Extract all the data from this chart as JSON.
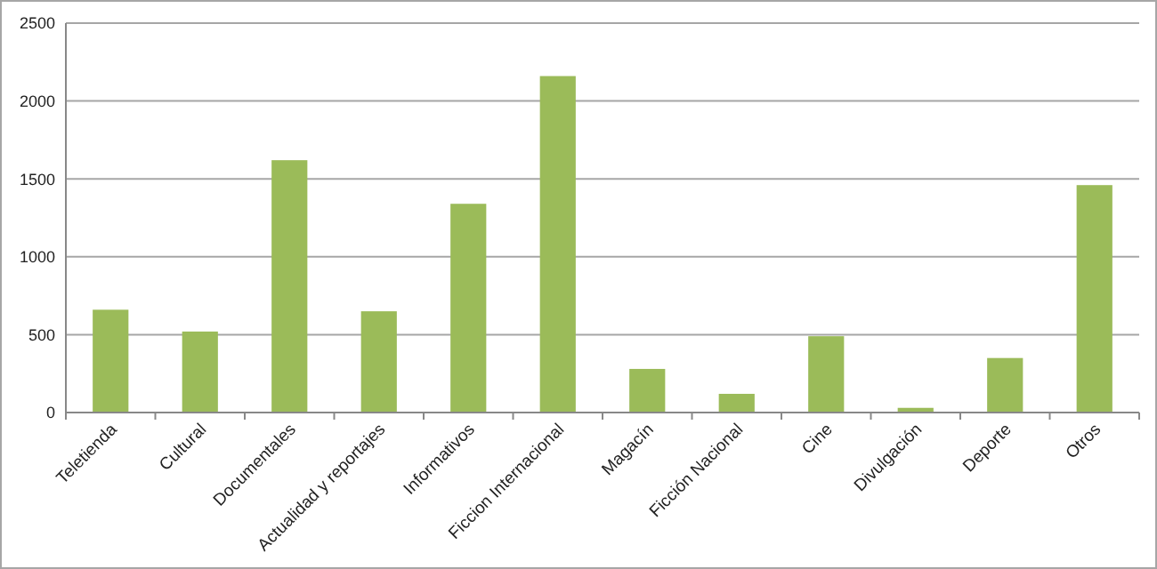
{
  "chart_data": {
    "type": "bar",
    "categories": [
      "Teletienda",
      "Cultural",
      "Documentales",
      "Actualidad y reportajes",
      "Informativos",
      "Ficcion Internacional",
      "Magacín",
      "Ficción Nacional",
      "Cine",
      "Divulgación",
      "Deporte",
      "Otros"
    ],
    "values": [
      660,
      520,
      1620,
      650,
      1340,
      2160,
      280,
      120,
      490,
      30,
      350,
      1460
    ],
    "color": "#9bbb59",
    "ylim": [
      0,
      2500
    ],
    "yticks": [
      0,
      500,
      1000,
      1500,
      2000,
      2500
    ],
    "grid": "y",
    "legend": false
  }
}
